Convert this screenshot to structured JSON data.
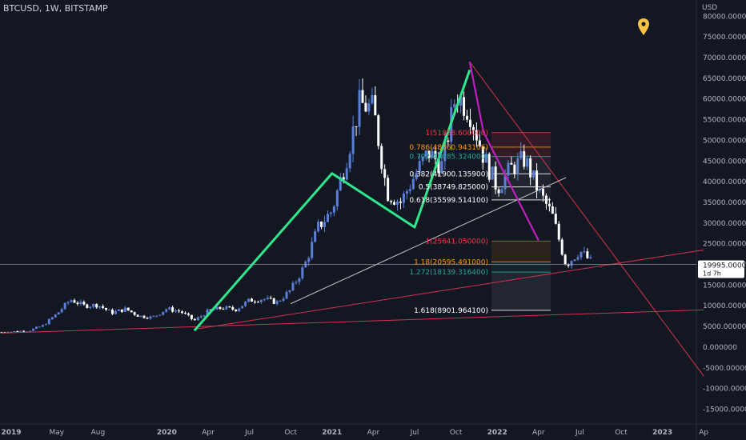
{
  "header": {
    "symbol": "BTCUSD",
    "interval": "1W",
    "exchange": "BITSTAMP",
    "separator": ", "
  },
  "currency_label": "USD",
  "price_badge": {
    "value": "19995.000000",
    "countdown": "1d 7h"
  },
  "colors": {
    "background": "#131722",
    "up_candle": "#5b7fd6",
    "down_candle": "#ffffff",
    "pattern_line": "#2ee88e",
    "trend_line_red": "#d1334d",
    "trend_line_gray": "#c8c8c8",
    "magenta_line": "#c21ebf",
    "fib_red": "#f23645",
    "fib_orange": "#ff9800",
    "fib_teal": "#26a69a",
    "fib_white": "#ffffff"
  },
  "chart_data": {
    "type": "candlestick",
    "x_ticks": [
      "2019",
      "May",
      "Aug",
      "2020",
      "Apr",
      "Jul",
      "Oct",
      "2021",
      "Apr",
      "Jul",
      "Oct",
      "2022",
      "Apr",
      "Jul",
      "Oct",
      "2023",
      "Ap"
    ],
    "y_ticks": [
      "80000.000000",
      "75000.000000",
      "70000.000000",
      "65000.000000",
      "60000.000000",
      "55000.000000",
      "50000.000000",
      "45000.000000",
      "40000.000000",
      "35000.000000",
      "30000.000000",
      "25000.000000",
      "20000.000000",
      "15000.000000",
      "10000.000000",
      "5000.000000",
      "0.000000",
      "-5000.000000",
      "-10000.000000",
      "-15000.000000"
    ],
    "y_range": [
      -16000,
      81000
    ],
    "current_price": 19995,
    "series_weekly_close_approx": [
      [
        "2019-01",
        3600
      ],
      [
        "2019-02",
        3800
      ],
      [
        "2019-03",
        4000
      ],
      [
        "2019-04",
        5200
      ],
      [
        "2019-05",
        8000
      ],
      [
        "2019-06",
        11500
      ],
      [
        "2019-07",
        10000
      ],
      [
        "2019-08",
        10200
      ],
      [
        "2019-09",
        8300
      ],
      [
        "2019-10",
        9200
      ],
      [
        "2019-11",
        7500
      ],
      [
        "2019-12",
        7200
      ],
      [
        "2020-01",
        9300
      ],
      [
        "2020-02",
        8600
      ],
      [
        "2020-03",
        6400
      ],
      [
        "2020-04",
        8700
      ],
      [
        "2020-05",
        9500
      ],
      [
        "2020-06",
        9100
      ],
      [
        "2020-07",
        11300
      ],
      [
        "2020-08",
        11700
      ],
      [
        "2020-09",
        10800
      ],
      [
        "2020-10",
        13800
      ],
      [
        "2020-11",
        19600
      ],
      [
        "2020-12",
        29000
      ],
      [
        "2021-01",
        33000
      ],
      [
        "2021-02",
        45000
      ],
      [
        "2021-03",
        58800
      ],
      [
        "2021-04",
        57700
      ],
      [
        "2021-05",
        37300
      ],
      [
        "2021-06",
        35000
      ],
      [
        "2021-07",
        41500
      ],
      [
        "2021-08",
        47100
      ],
      [
        "2021-09",
        43800
      ],
      [
        "2021-10",
        61300
      ],
      [
        "2021-11",
        57000
      ],
      [
        "2021-12",
        46200
      ],
      [
        "2022-01",
        38500
      ],
      [
        "2022-02",
        43200
      ],
      [
        "2022-03",
        45500
      ],
      [
        "2022-04",
        37700
      ],
      [
        "2022-05",
        31800
      ],
      [
        "2022-06",
        19900
      ],
      [
        "2022-07",
        23300
      ],
      [
        "2022-08",
        20000
      ]
    ],
    "fib_levels": [
      {
        "label": "1(51858.600000)",
        "ratio": "1",
        "price": 51858.6,
        "color": "#f23645"
      },
      {
        "label": "0.786(48360.943106)",
        "ratio": "0.786",
        "price": 48360.943106,
        "color": "#ff9800"
      },
      {
        "label": "0.702(46085.324000)",
        "ratio": "0.702",
        "price": 46085.324,
        "color": "#26a69a"
      },
      {
        "label": "0.382(41900.135900)",
        "ratio": "0.382",
        "price": 41900.1359,
        "color": "#ffffff"
      },
      {
        "label": "0.5(38749.825000)",
        "ratio": "0.5",
        "price": 38749.825,
        "color": "#ffffff"
      },
      {
        "label": "0.618(35599.514100)",
        "ratio": "0.618",
        "price": 35599.5141,
        "color": "#ffffff"
      },
      {
        "label": "1(25641.050000)",
        "ratio": "1",
        "price": 25641.05,
        "color": "#f23645"
      },
      {
        "label": "1.18(20595.491000)",
        "ratio": "1.18",
        "price": 20595.491,
        "color": "#ff9800"
      },
      {
        "label": "1.272(18139.316400)",
        "ratio": "1.272",
        "price": 18139.3164,
        "color": "#26a69a"
      },
      {
        "label": "1.618(8901.964100)",
        "ratio": "1.618",
        "price": 8901.9641,
        "color": "#ffffff"
      }
    ],
    "pattern_points": [
      [
        "2020-03",
        4000
      ],
      [
        "2021-01",
        42000
      ],
      [
        "2021-07",
        29000
      ],
      [
        "2021-11",
        67000
      ]
    ],
    "magenta_line": [
      [
        "2021-11",
        69000
      ],
      [
        "2021-12",
        52000
      ],
      [
        "2022-04",
        25800
      ]
    ],
    "trend_lines": [
      {
        "color": "red",
        "from": [
          "2019-01",
          3400
        ],
        "to": [
          "2023-04",
          9000
        ]
      },
      {
        "color": "red",
        "from": [
          "2020-03",
          4300
        ],
        "to": [
          "2023-04",
          23500
        ]
      },
      {
        "color": "red",
        "from": [
          "2021-11",
          69000
        ],
        "to": [
          "2023-04",
          -7000
        ]
      },
      {
        "color": "gray",
        "from": [
          "2020-10",
          10500
        ],
        "to": [
          "2022-06",
          41000
        ]
      }
    ],
    "grid": false,
    "legend": "none"
  }
}
